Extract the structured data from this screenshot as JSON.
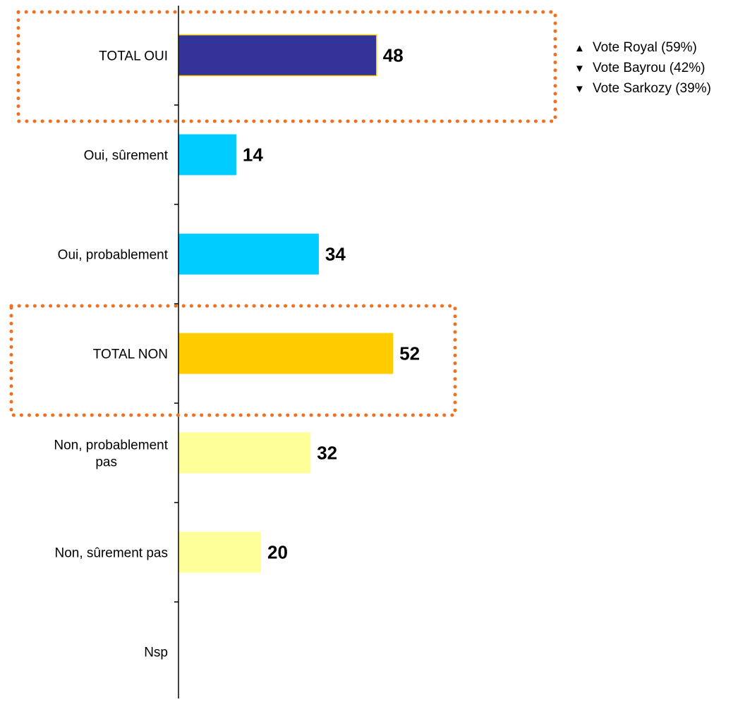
{
  "chart_data": {
    "type": "bar",
    "orientation": "horizontal",
    "categories": [
      [
        "TOTAL OUI"
      ],
      [
        "Oui, sûrement"
      ],
      [
        "Oui, probablement"
      ],
      [
        "TOTAL NON"
      ],
      [
        "Non, probablement",
        "pas"
      ],
      [
        "Non, sûrement pas"
      ],
      [
        "Nsp"
      ]
    ],
    "values": [
      48,
      14,
      34,
      52,
      32,
      20,
      null
    ],
    "value_labels": [
      "48",
      "14",
      "34",
      "52",
      "32",
      "20",
      ""
    ],
    "colors": [
      "#333399",
      "#00CCFF",
      "#00CCFF",
      "#FFCC00",
      "#FFFF99",
      "#FFFF99",
      "#FFFF99"
    ],
    "highlight_color": "#F07020",
    "highlighted_categories": [
      "TOTAL OUI",
      "TOTAL NON"
    ],
    "annotations": [
      {
        "arrow": "▲",
        "text": "Vote Royal (59%)"
      },
      {
        "arrow": "▼",
        "text": "Vote Bayrou (42%)"
      },
      {
        "arrow": "▼",
        "text": "Vote Sarkozy (39%)"
      }
    ],
    "title": "",
    "xlabel": "",
    "ylabel": "",
    "grid": false,
    "legend": false
  }
}
